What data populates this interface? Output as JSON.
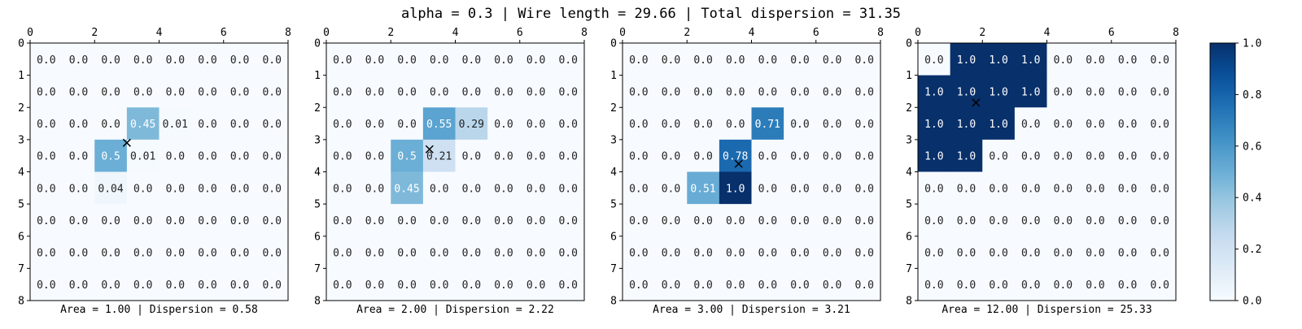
{
  "title": "alpha = 0.3 | Wire length = 29.66 | Total dispersion = 31.35",
  "axis_ticks": [
    "0",
    "1",
    "2",
    "3",
    "4",
    "5",
    "6",
    "7",
    "8"
  ],
  "x_ticks": [
    "0",
    "2",
    "4",
    "6",
    "8"
  ],
  "colorbar": {
    "colormap": "Blues",
    "ticks": [
      "0.0",
      "0.2",
      "0.4",
      "0.6",
      "0.8",
      "1.0"
    ],
    "min": 0,
    "max": 1
  },
  "chart_data": [
    {
      "type": "heatmap",
      "xlabel": "Area = 1.00 | Dispersion = 0.58",
      "marker": {
        "x": 3.0,
        "y": 3.1
      },
      "labels": [
        [
          "0.0",
          "0.0",
          "0.0",
          "0.0",
          "0.0",
          "0.0",
          "0.0",
          "0.0"
        ],
        [
          "0.0",
          "0.0",
          "0.0",
          "0.0",
          "0.0",
          "0.0",
          "0.0",
          "0.0"
        ],
        [
          "0.0",
          "0.0",
          "0.0",
          "0.45",
          "0.01",
          "0.0",
          "0.0",
          "0.0"
        ],
        [
          "0.0",
          "0.0",
          "0.5",
          "0.01",
          "0.0",
          "0.0",
          "0.0",
          "0.0"
        ],
        [
          "0.0",
          "0.0",
          "0.04",
          "0.0",
          "0.0",
          "0.0",
          "0.0",
          "0.0"
        ],
        [
          "0.0",
          "0.0",
          "0.0",
          "0.0",
          "0.0",
          "0.0",
          "0.0",
          "0.0"
        ],
        [
          "0.0",
          "0.0",
          "0.0",
          "0.0",
          "0.0",
          "0.0",
          "0.0",
          "0.0"
        ],
        [
          "0.0",
          "0.0",
          "0.0",
          "0.0",
          "0.0",
          "0.0",
          "0.0",
          "0.0"
        ]
      ]
    },
    {
      "type": "heatmap",
      "xlabel": "Area = 2.00 | Dispersion = 2.22",
      "marker": {
        "x": 3.2,
        "y": 3.3
      },
      "labels": [
        [
          "0.0",
          "0.0",
          "0.0",
          "0.0",
          "0.0",
          "0.0",
          "0.0",
          "0.0"
        ],
        [
          "0.0",
          "0.0",
          "0.0",
          "0.0",
          "0.0",
          "0.0",
          "0.0",
          "0.0"
        ],
        [
          "0.0",
          "0.0",
          "0.0",
          "0.55",
          "0.29",
          "0.0",
          "0.0",
          "0.0"
        ],
        [
          "0.0",
          "0.0",
          "0.5",
          "0.21",
          "0.0",
          "0.0",
          "0.0",
          "0.0"
        ],
        [
          "0.0",
          "0.0",
          "0.45",
          "0.0",
          "0.0",
          "0.0",
          "0.0",
          "0.0"
        ],
        [
          "0.0",
          "0.0",
          "0.0",
          "0.0",
          "0.0",
          "0.0",
          "0.0",
          "0.0"
        ],
        [
          "0.0",
          "0.0",
          "0.0",
          "0.0",
          "0.0",
          "0.0",
          "0.0",
          "0.0"
        ],
        [
          "0.0",
          "0.0",
          "0.0",
          "0.0",
          "0.0",
          "0.0",
          "0.0",
          "0.0"
        ]
      ]
    },
    {
      "type": "heatmap",
      "xlabel": "Area = 3.00 | Dispersion = 3.21",
      "marker": {
        "x": 3.6,
        "y": 3.75
      },
      "labels": [
        [
          "0.0",
          "0.0",
          "0.0",
          "0.0",
          "0.0",
          "0.0",
          "0.0",
          "0.0"
        ],
        [
          "0.0",
          "0.0",
          "0.0",
          "0.0",
          "0.0",
          "0.0",
          "0.0",
          "0.0"
        ],
        [
          "0.0",
          "0.0",
          "0.0",
          "0.0",
          "0.71",
          "0.0",
          "0.0",
          "0.0"
        ],
        [
          "0.0",
          "0.0",
          "0.0",
          "0.78",
          "0.0",
          "0.0",
          "0.0",
          "0.0"
        ],
        [
          "0.0",
          "0.0",
          "0.51",
          "1.0",
          "0.0",
          "0.0",
          "0.0",
          "0.0"
        ],
        [
          "0.0",
          "0.0",
          "0.0",
          "0.0",
          "0.0",
          "0.0",
          "0.0",
          "0.0"
        ],
        [
          "0.0",
          "0.0",
          "0.0",
          "0.0",
          "0.0",
          "0.0",
          "0.0",
          "0.0"
        ],
        [
          "0.0",
          "0.0",
          "0.0",
          "0.0",
          "0.0",
          "0.0",
          "0.0",
          "0.0"
        ]
      ]
    },
    {
      "type": "heatmap",
      "xlabel": "Area = 12.00 | Dispersion = 25.33",
      "marker": {
        "x": 1.8,
        "y": 1.85
      },
      "labels": [
        [
          "0.0",
          "1.0",
          "1.0",
          "1.0",
          "0.0",
          "0.0",
          "0.0",
          "0.0"
        ],
        [
          "1.0",
          "1.0",
          "1.0",
          "1.0",
          "0.0",
          "0.0",
          "0.0",
          "0.0"
        ],
        [
          "1.0",
          "1.0",
          "1.0",
          "0.0",
          "0.0",
          "0.0",
          "0.0",
          "0.0"
        ],
        [
          "1.0",
          "1.0",
          "0.0",
          "0.0",
          "0.0",
          "0.0",
          "0.0",
          "0.0"
        ],
        [
          "0.0",
          "0.0",
          "0.0",
          "0.0",
          "0.0",
          "0.0",
          "0.0",
          "0.0"
        ],
        [
          "0.0",
          "0.0",
          "0.0",
          "0.0",
          "0.0",
          "0.0",
          "0.0",
          "0.0"
        ],
        [
          "0.0",
          "0.0",
          "0.0",
          "0.0",
          "0.0",
          "0.0",
          "0.0",
          "0.0"
        ],
        [
          "0.0",
          "0.0",
          "0.0",
          "0.0",
          "0.0",
          "0.0",
          "0.0",
          "0.0"
        ]
      ]
    }
  ]
}
